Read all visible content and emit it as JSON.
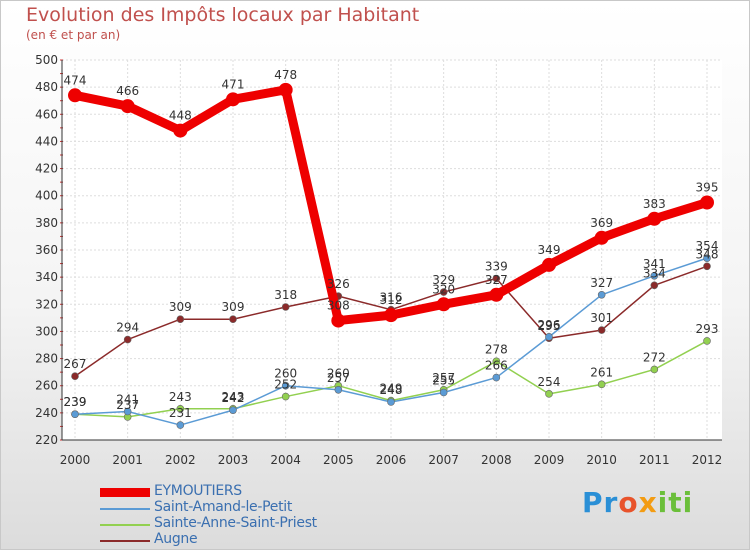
{
  "chart_data": {
    "type": "line",
    "title": "Evolution des Impôts locaux par Habitant",
    "subtitle": "(en € et par an)",
    "xlabel": "",
    "ylabel": "",
    "x": [
      "2000",
      "2001",
      "2002",
      "2003",
      "2004",
      "2005",
      "2006",
      "2007",
      "2008",
      "2009",
      "2010",
      "2011",
      "2012"
    ],
    "ylim": [
      220,
      500
    ],
    "yticks": [
      220,
      240,
      260,
      280,
      300,
      320,
      340,
      360,
      380,
      400,
      420,
      440,
      460,
      480,
      500
    ],
    "grid": true,
    "legend_position": "bottom-left",
    "series": [
      {
        "name": "EYMOUTIERS",
        "color": "#ee0000",
        "width": "thick",
        "values": [
          474,
          466,
          448,
          471,
          478,
          308,
          312,
          320,
          327,
          349,
          369,
          383,
          395
        ],
        "labels": [
          "474",
          "466",
          "448",
          "471",
          "478",
          "308",
          "312",
          "320",
          "327",
          "349",
          "369",
          "383",
          "395"
        ]
      },
      {
        "name": "Saint-Amand-le-Petit",
        "color": "#5b9bd5",
        "width": "thin",
        "values": [
          239,
          241,
          231,
          242,
          260,
          257,
          248,
          255,
          266,
          296,
          327,
          341,
          354
        ],
        "labels": [
          "239",
          "241",
          "231",
          "242",
          "260",
          "257",
          "248",
          "255",
          "266",
          "296",
          "327",
          "341",
          "354"
        ]
      },
      {
        "name": "Sainte-Anne-Saint-Priest",
        "color": "#92d050",
        "width": "thin",
        "values": [
          239,
          237,
          243,
          243,
          252,
          260,
          249,
          257,
          278,
          254,
          261,
          272,
          293
        ],
        "labels": [
          "239",
          "237",
          "243",
          "243",
          "252",
          "260",
          "249",
          "257",
          "278",
          "254",
          "261",
          "272",
          "293"
        ]
      },
      {
        "name": "Augne",
        "color": "#8b2a2a",
        "width": "thin",
        "values": [
          267,
          294,
          309,
          309,
          318,
          326,
          316,
          329,
          339,
          295,
          301,
          334,
          348
        ],
        "labels": [
          "267",
          "294",
          "309",
          "309",
          "318",
          "326",
          "316",
          "329",
          "339",
          "295",
          "301",
          "334",
          "348"
        ]
      }
    ]
  },
  "logo": {
    "p1": "Pr",
    "p2": "o",
    "p3": "x",
    "p4": "iti"
  }
}
